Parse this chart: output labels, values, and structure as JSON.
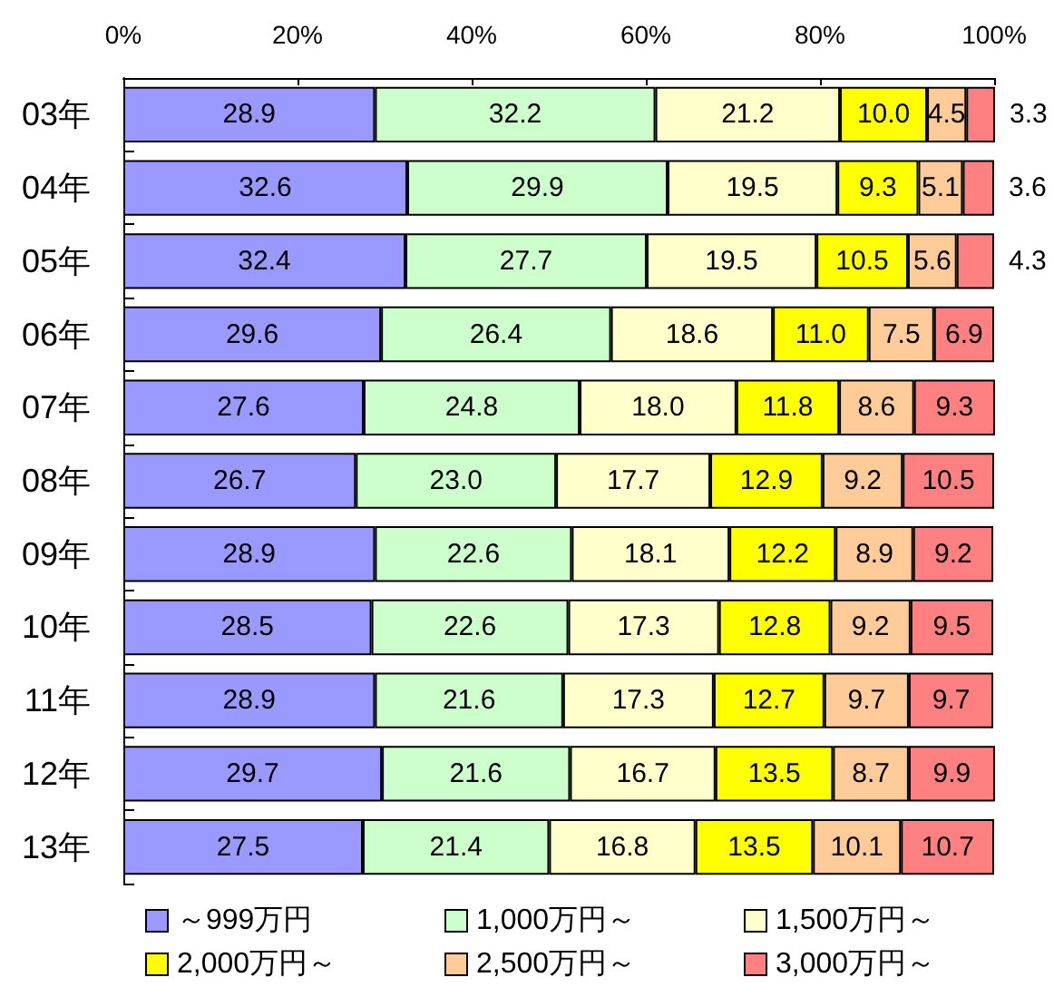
{
  "chart_data": {
    "type": "bar",
    "orientation": "horizontal",
    "stacked": true,
    "categories": [
      "03年",
      "04年",
      "05年",
      "06年",
      "07年",
      "08年",
      "09年",
      "10年",
      "11年",
      "12年",
      "13年"
    ],
    "series": [
      {
        "name": "～999万円",
        "color": "#9999ff",
        "values": [
          28.9,
          32.6,
          32.4,
          29.6,
          27.6,
          26.7,
          28.9,
          28.5,
          28.9,
          29.7,
          27.5
        ],
        "value_labels": [
          "28.9",
          "32.6",
          "32.4",
          "29.6",
          "27.6",
          "26.7",
          "28.9",
          "28.5",
          "28.9",
          "29.7",
          "27.5"
        ]
      },
      {
        "name": "1,000万円～",
        "color": "#ccffcc",
        "values": [
          32.2,
          29.9,
          27.7,
          26.4,
          24.8,
          23.0,
          22.6,
          22.6,
          21.6,
          21.6,
          21.4
        ],
        "value_labels": [
          "32.2",
          "29.9",
          "27.7",
          "26.4",
          "24.8",
          "23.0",
          "22.6",
          "22.6",
          "21.6",
          "21.6",
          "21.4"
        ]
      },
      {
        "name": "1,500万円～",
        "color": "#ffffcc",
        "values": [
          21.2,
          19.5,
          19.5,
          18.6,
          18.0,
          17.7,
          18.1,
          17.3,
          17.3,
          16.7,
          16.8
        ],
        "value_labels": [
          "21.2",
          "19.5",
          "19.5",
          "18.6",
          "18.0",
          "17.7",
          "18.1",
          "17.3",
          "17.3",
          "16.7",
          "16.8"
        ]
      },
      {
        "name": "2,000万円～",
        "color": "#ffff00",
        "values": [
          10.0,
          9.3,
          10.5,
          11.0,
          11.8,
          12.9,
          12.2,
          12.8,
          12.7,
          13.5,
          13.5
        ],
        "value_labels": [
          "10.0",
          "9.3",
          "10.5",
          "11.0",
          "11.8",
          "12.9",
          "12.2",
          "12.8",
          "12.7",
          "13.5",
          "13.5"
        ]
      },
      {
        "name": "2,500万円～",
        "color": "#ffcc99",
        "values": [
          4.5,
          5.1,
          5.6,
          7.5,
          8.6,
          9.2,
          8.9,
          9.2,
          9.7,
          8.7,
          10.1
        ],
        "value_labels": [
          "4.5",
          "5.1",
          "5.6",
          "7.5",
          "8.6",
          "9.2",
          "8.9",
          "9.2",
          "9.7",
          "8.7",
          "10.1"
        ]
      },
      {
        "name": "3,000万円～",
        "color": "#ff8080",
        "values": [
          3.3,
          3.6,
          4.3,
          6.9,
          9.3,
          10.5,
          9.2,
          9.5,
          9.7,
          9.9,
          10.7
        ],
        "value_labels": [
          "3.3",
          "3.6",
          "4.3",
          "6.9",
          "9.3",
          "10.5",
          "9.2",
          "9.5",
          "9.7",
          "9.9",
          "10.7"
        ]
      }
    ],
    "xlim": [
      0,
      100
    ],
    "xticks": [
      {
        "value": 0,
        "label": "0%"
      },
      {
        "value": 20,
        "label": "20%"
      },
      {
        "value": 40,
        "label": "40%"
      },
      {
        "value": 60,
        "label": "60%"
      },
      {
        "value": 80,
        "label": "80%"
      },
      {
        "value": 100,
        "label": "100%"
      }
    ],
    "grid": false,
    "legend": "bottom"
  }
}
